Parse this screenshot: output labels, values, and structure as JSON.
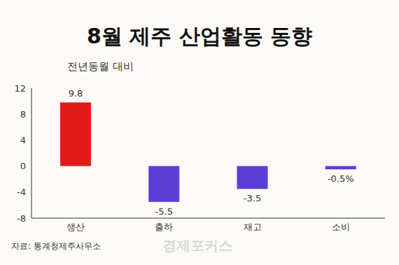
{
  "chart_data": {
    "type": "bar",
    "title": "8월 제주 산업활동 동향",
    "subtitle": "전년동월 대비",
    "categories": [
      "생산",
      "출하",
      "재고",
      "소비"
    ],
    "values": [
      9.8,
      -5.5,
      -3.5,
      -0.5
    ],
    "value_labels": [
      "9.8",
      "-5.5",
      "-3.5",
      "-0.5%"
    ],
    "colors": [
      "#e11b1b",
      "#5a3fd6",
      "#5a3fd6",
      "#5a3fd6"
    ],
    "ylim": [
      -8,
      12
    ],
    "yticks": [
      -8,
      -4,
      0,
      4,
      8,
      12
    ],
    "grid": false,
    "data_labels": true,
    "source": "자료: 통계청제주사무소",
    "logo": "경제포커스"
  }
}
